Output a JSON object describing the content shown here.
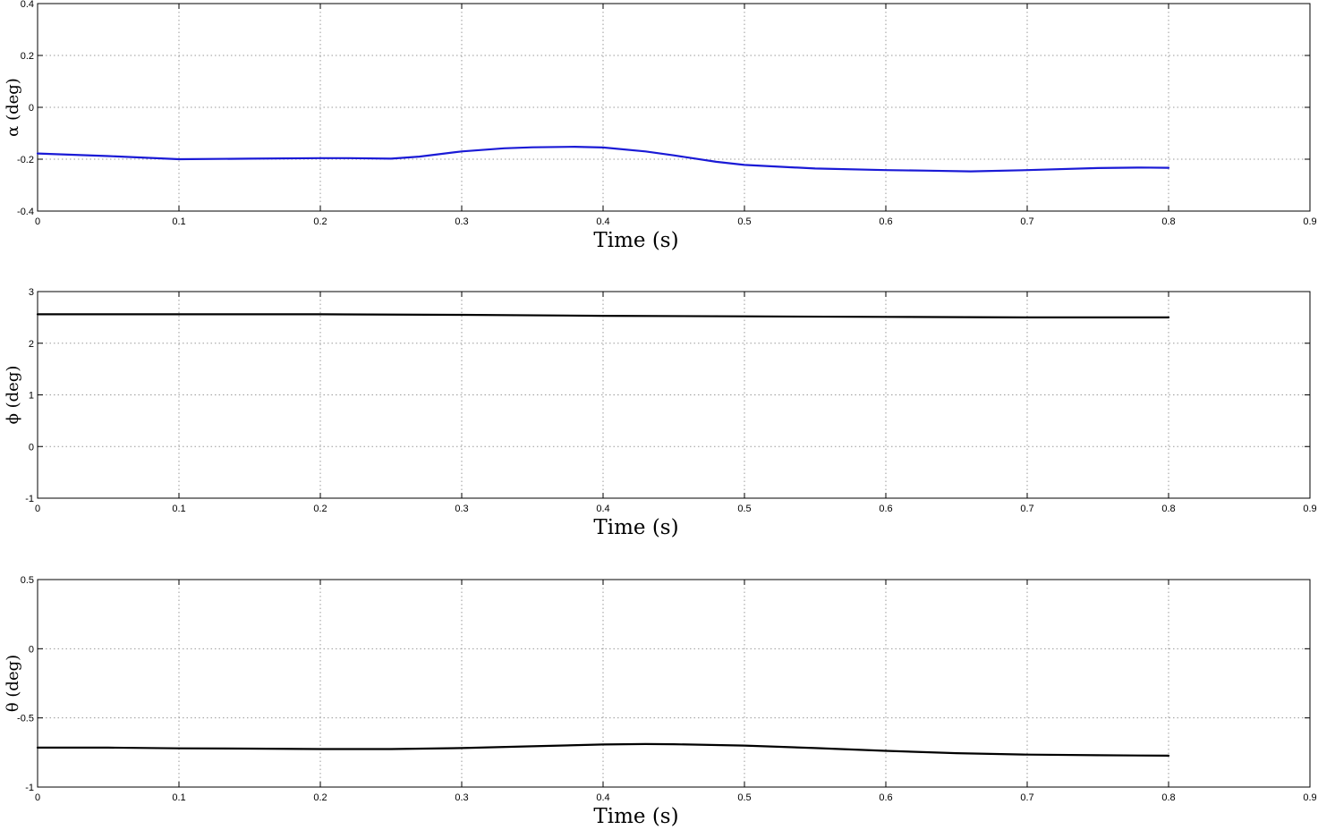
{
  "chart_data": [
    {
      "type": "line",
      "xlabel": "Time (s)",
      "ylabel": "α (deg)",
      "xlim": [
        0,
        0.9
      ],
      "ylim": [
        -0.4,
        0.4
      ],
      "xticks": [
        0,
        0.1,
        0.2,
        0.3,
        0.4,
        0.5,
        0.6,
        0.7,
        0.8,
        0.9
      ],
      "yticks": [
        -0.4,
        -0.2,
        0,
        0.2,
        0.4
      ],
      "xtick_labels": [
        "0",
        "0.1",
        "0.2",
        "0.3",
        "0.4",
        "0.5",
        "0.6",
        "0.7",
        "0.8",
        "0.9"
      ],
      "ytick_labels": [
        "-0.4",
        "-0.2",
        "0",
        "0.2",
        "0.4"
      ],
      "grid": true,
      "series": [
        {
          "color": "#1a1ad6",
          "x": [
            0,
            0.05,
            0.1,
            0.15,
            0.2,
            0.22,
            0.25,
            0.27,
            0.3,
            0.33,
            0.35,
            0.38,
            0.4,
            0.43,
            0.45,
            0.48,
            0.5,
            0.55,
            0.6,
            0.63,
            0.66,
            0.7,
            0.75,
            0.78,
            0.8
          ],
          "y": [
            -0.178,
            -0.188,
            -0.2,
            -0.198,
            -0.196,
            -0.196,
            -0.198,
            -0.19,
            -0.17,
            -0.158,
            -0.154,
            -0.152,
            -0.155,
            -0.17,
            -0.185,
            -0.21,
            -0.222,
            -0.236,
            -0.242,
            -0.244,
            -0.247,
            -0.242,
            -0.234,
            -0.232,
            -0.233
          ]
        }
      ]
    },
    {
      "type": "line",
      "xlabel": "Time (s)",
      "ylabel": "ϕ (deg)",
      "xlim": [
        0,
        0.9
      ],
      "ylim": [
        -1,
        3
      ],
      "xticks": [
        0,
        0.1,
        0.2,
        0.3,
        0.4,
        0.5,
        0.6,
        0.7,
        0.8,
        0.9
      ],
      "yticks": [
        -1,
        0,
        1,
        2,
        3
      ],
      "xtick_labels": [
        "0",
        "0.1",
        "0.2",
        "0.3",
        "0.4",
        "0.5",
        "0.6",
        "0.7",
        "0.8",
        "0.9"
      ],
      "ytick_labels": [
        "-1",
        "0",
        "1",
        "2",
        "3"
      ],
      "grid": true,
      "series": [
        {
          "color": "#000000",
          "x": [
            0,
            0.1,
            0.2,
            0.3,
            0.4,
            0.5,
            0.6,
            0.7,
            0.8
          ],
          "y": [
            2.56,
            2.56,
            2.56,
            2.55,
            2.53,
            2.52,
            2.51,
            2.5,
            2.5
          ]
        }
      ]
    },
    {
      "type": "line",
      "xlabel": "Time (s)",
      "ylabel": "θ (deg)",
      "xlim": [
        0,
        0.9
      ],
      "ylim": [
        -1,
        0.5
      ],
      "xticks": [
        0,
        0.1,
        0.2,
        0.3,
        0.4,
        0.5,
        0.6,
        0.7,
        0.8,
        0.9
      ],
      "yticks": [
        -1,
        -0.5,
        0,
        0.5
      ],
      "xtick_labels": [
        "0",
        "0.1",
        "0.2",
        "0.3",
        "0.4",
        "0.5",
        "0.6",
        "0.7",
        "0.8",
        "0.9"
      ],
      "ytick_labels": [
        "-1",
        "-0.5",
        "0",
        "0.5"
      ],
      "grid": true,
      "series": [
        {
          "color": "#000000",
          "x": [
            0,
            0.05,
            0.1,
            0.15,
            0.2,
            0.25,
            0.3,
            0.35,
            0.4,
            0.43,
            0.45,
            0.5,
            0.55,
            0.6,
            0.65,
            0.7,
            0.75,
            0.8
          ],
          "y": [
            -0.715,
            -0.715,
            -0.72,
            -0.722,
            -0.725,
            -0.725,
            -0.718,
            -0.705,
            -0.692,
            -0.689,
            -0.69,
            -0.7,
            -0.718,
            -0.738,
            -0.755,
            -0.765,
            -0.77,
            -0.773
          ]
        }
      ]
    }
  ]
}
